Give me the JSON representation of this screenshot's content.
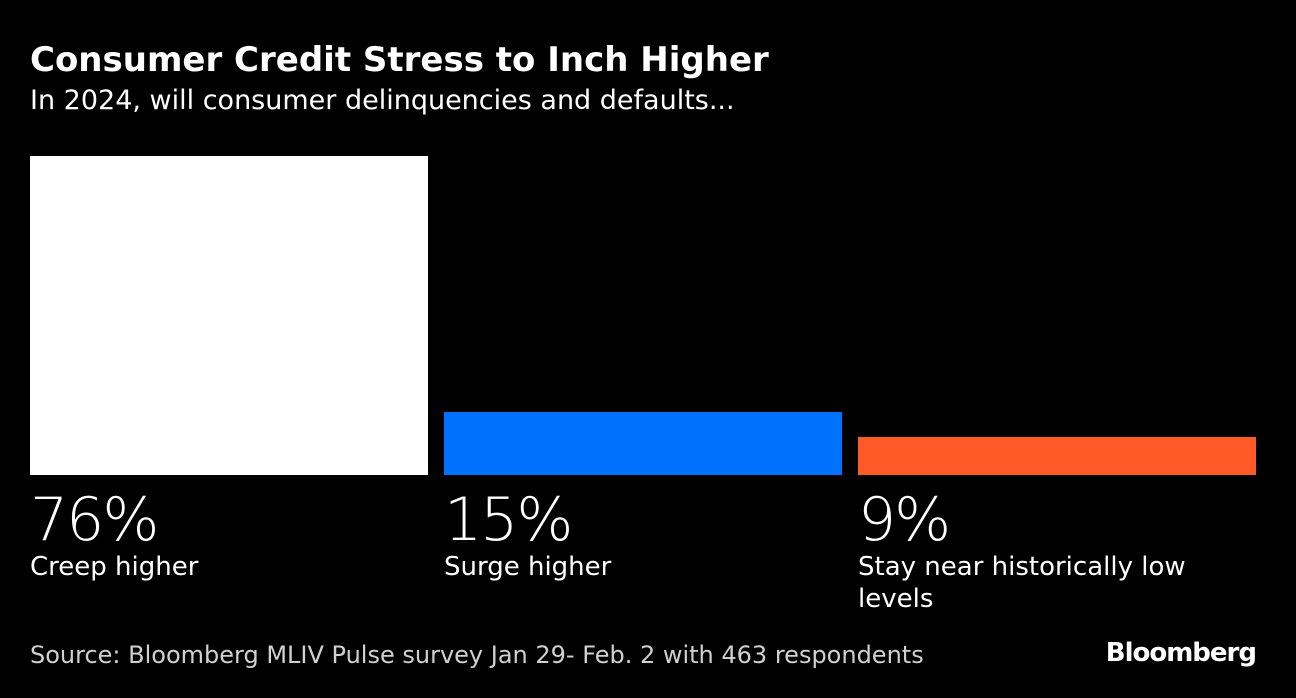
{
  "chart_data": {
    "type": "bar",
    "title": "Consumer Credit Stress to Inch Higher",
    "subtitle": "In 2024, will consumer delinquencies and defaults...",
    "categories": [
      "Creep higher",
      "Surge higher",
      "Stay near historically low levels"
    ],
    "values": [
      76,
      15,
      9
    ],
    "value_labels": [
      "76%",
      "15%",
      "9%"
    ],
    "colors": [
      "#ffffff",
      "#0070ff",
      "#ff5a28"
    ],
    "source": "Source: Bloomberg MLIV Pulse survey Jan 29- Feb. 2 with 463 respondents",
    "brand": "Bloomberg"
  }
}
